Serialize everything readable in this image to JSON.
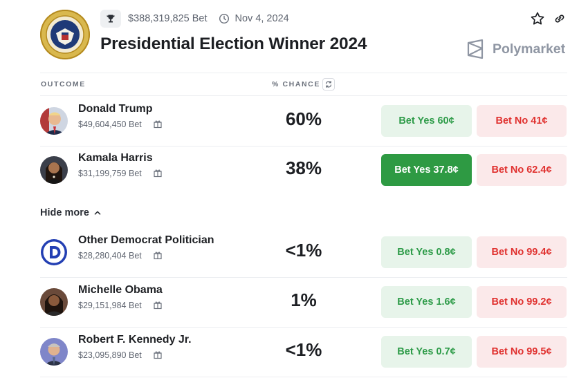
{
  "header": {
    "total_bet": "$388,319,825 Bet",
    "date": "Nov 4, 2024",
    "title": "Presidential Election Winner 2024",
    "brand": "Polymarket",
    "icons": [
      "trophy-icon",
      "clock-icon",
      "star-icon",
      "link-icon",
      "polymarket-logo",
      "presidential-seal"
    ]
  },
  "table": {
    "col_outcome": "OUTCOME",
    "col_chance": "% CHANCE",
    "hide_more": "Hide more"
  },
  "colors": {
    "yes_bg": "#e7f4ea",
    "yes_text": "#2d9b48",
    "yes_active_bg": "#2e9a43",
    "no_bg": "#fbe9ea",
    "no_text": "#e0312f"
  },
  "outcomes": [
    {
      "name": "Donald Trump",
      "volume": "$49,604,450 Bet",
      "chance": "60%",
      "yes": "Bet Yes 60¢",
      "no": "Bet No 41¢"
    },
    {
      "name": "Kamala Harris",
      "volume": "$31,199,759 Bet",
      "chance": "38%",
      "yes": "Bet Yes 37.8¢",
      "no": "Bet No 62.4¢",
      "yes_selected": true
    },
    {
      "name": "Other Democrat Politician",
      "volume": "$28,280,404 Bet",
      "chance": "<1%",
      "yes": "Bet Yes 0.8¢",
      "no": "Bet No 99.4¢"
    },
    {
      "name": "Michelle Obama",
      "volume": "$29,151,984 Bet",
      "chance": "1%",
      "yes": "Bet Yes 1.6¢",
      "no": "Bet No 99.2¢"
    },
    {
      "name": "Robert F. Kennedy Jr.",
      "volume": "$23,095,890 Bet",
      "chance": "<1%",
      "yes": "Bet Yes 0.7¢",
      "no": "Bet No 99.5¢"
    }
  ]
}
